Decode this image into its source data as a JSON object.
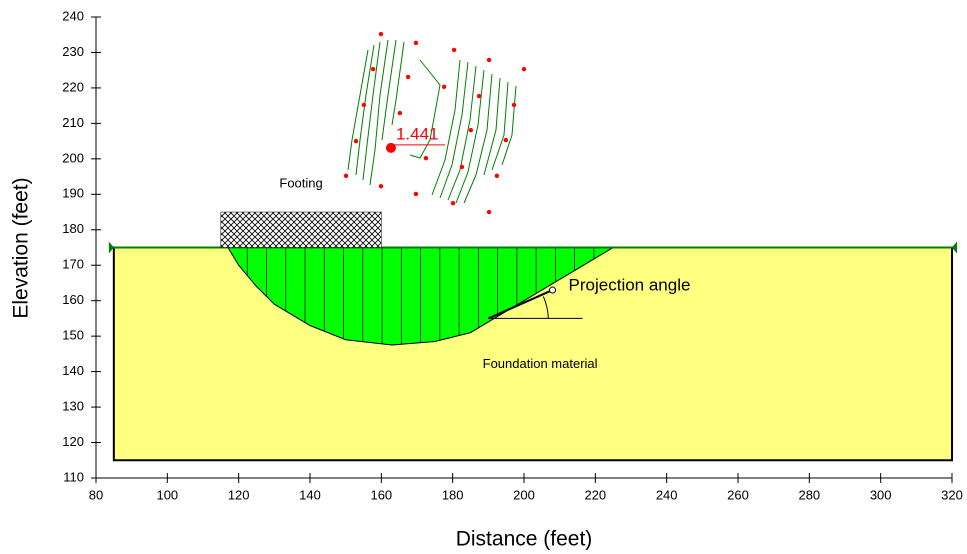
{
  "chart_data": {
    "type": "slope-section",
    "x_label": "Distance (feet)",
    "y_label": "Elevation (feet)",
    "xlim": [
      80,
      320
    ],
    "ylim": [
      110,
      240
    ],
    "xticks": [
      80,
      100,
      120,
      140,
      160,
      180,
      200,
      220,
      240,
      260,
      280,
      300,
      320
    ],
    "yticks": [
      110,
      120,
      130,
      140,
      150,
      160,
      170,
      180,
      190,
      200,
      210,
      220,
      230,
      240
    ],
    "region": {
      "name": "Foundation material",
      "color": "#ffff80",
      "x": [
        85,
        320
      ],
      "y": [
        115,
        175
      ]
    },
    "ground_color": "#008000",
    "footing": {
      "name": "Footing",
      "x": [
        115,
        160
      ],
      "y": [
        175,
        185
      ]
    },
    "slip_surface": {
      "color": "#00ff00",
      "x": [
        117,
        120,
        125,
        130,
        140,
        150,
        163,
        175,
        185,
        195,
        205,
        215,
        225
      ],
      "y": [
        175,
        170,
        164,
        159,
        153,
        149,
        147.5,
        148.5,
        151,
        157,
        163,
        169,
        175
      ]
    },
    "grid_points": {
      "color": "#ff0000",
      "x": [
        159.9,
        169.7,
        180.4,
        190.2,
        200.0,
        157.7,
        167.5,
        177.6,
        187.4,
        197.2,
        155.1,
        165.2,
        185.1,
        194.9,
        152.9,
        172.5,
        182.6,
        192.4,
        150.1,
        159.9,
        169.7,
        180.1,
        190.2
      ],
      "y": [
        235.2,
        232.7,
        230.7,
        227.9,
        225.3,
        225.3,
        223.1,
        220.3,
        217.7,
        215.2,
        215.2,
        212.9,
        208.1,
        205.3,
        205.0,
        200.2,
        197.7,
        195.2,
        195.2,
        192.3,
        190.1,
        187.5,
        185.0
      ]
    },
    "critical_point": {
      "x": 162.7,
      "y": 203.1,
      "factor_of_safety": 1.441
    },
    "projection": {
      "label": "Projection angle",
      "x": [
        190,
        208
      ],
      "y": [
        155,
        163
      ]
    }
  }
}
